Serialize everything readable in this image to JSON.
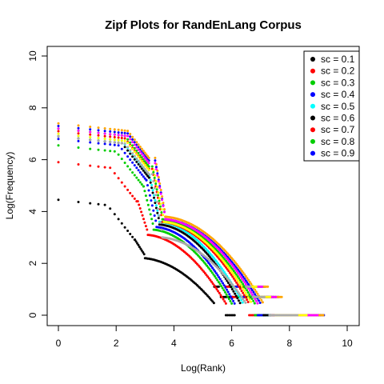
{
  "chart_data": {
    "type": "scatter",
    "title": "Zipf Plots for RandEnLang Corpus",
    "xlabel": "Log(Rank)",
    "ylabel": "Log(Frequency)",
    "xlim": [
      0,
      10
    ],
    "ylim": [
      0,
      10
    ],
    "xticks": [
      "0",
      "2",
      "4",
      "6",
      "8",
      "10"
    ],
    "yticks": [
      "0",
      "2",
      "4",
      "6",
      "8",
      "10"
    ],
    "legend_position": "top-right",
    "legend": [
      {
        "label": "sc = 0.1",
        "color": "#000000"
      },
      {
        "label": "sc = 0.2",
        "color": "#ff0000"
      },
      {
        "label": "sc = 0.3",
        "color": "#00cd00"
      },
      {
        "label": "sc = 0.4",
        "color": "#0000ff"
      },
      {
        "label": "sc = 0.5",
        "color": "#00ffff"
      },
      {
        "label": "sc = 0.6",
        "color": "#000000"
      },
      {
        "label": "sc = 0.7",
        "color": "#ff0000"
      },
      {
        "label": "sc = 0.8",
        "color": "#00cd00"
      },
      {
        "label": "sc = 0.9",
        "color": "#0000ff"
      }
    ],
    "series": [
      {
        "color": "#000000",
        "top_y": 4.45,
        "shoulder_x": 2.3,
        "mid_y": 2.2,
        "tail_x": 5.4,
        "end_x": 6.1,
        "end_y": 0
      },
      {
        "color": "#ff0000",
        "top_y": 5.9,
        "shoulder_x": 2.4,
        "mid_y": 3.1,
        "tail_x": 5.8,
        "end_x": 7.0,
        "end_y": 0
      },
      {
        "color": "#00cd00",
        "top_y": 6.55,
        "shoulder_x": 2.6,
        "mid_y": 3.3,
        "tail_x": 6.0,
        "end_x": 8.0,
        "end_y": 0
      },
      {
        "color": "#0000ff",
        "top_y": 6.8,
        "shoulder_x": 2.7,
        "mid_y": 3.4,
        "tail_x": 6.1,
        "end_x": 8.5,
        "end_y": 0
      },
      {
        "color": "#00ffff",
        "top_y": 7.0,
        "shoulder_x": 2.8,
        "mid_y": 3.6,
        "tail_x": 6.4,
        "end_x": 8.8,
        "end_y": 0
      },
      {
        "color": "#000000",
        "top_y": 6.9,
        "shoulder_x": 2.8,
        "mid_y": 3.5,
        "tail_x": 6.3,
        "end_x": 8.9,
        "end_y": 0
      },
      {
        "color": "#ff0000",
        "top_y": 7.1,
        "shoulder_x": 2.9,
        "mid_y": 3.6,
        "tail_x": 6.6,
        "end_x": 9.0,
        "end_y": 0
      },
      {
        "color": "#00cd00",
        "top_y": 7.2,
        "shoulder_x": 2.9,
        "mid_y": 3.7,
        "tail_x": 6.8,
        "end_x": 9.1,
        "end_y": 0
      },
      {
        "color": "#0000ff",
        "top_y": 7.3,
        "shoulder_x": 3.0,
        "mid_y": 3.7,
        "tail_x": 7.0,
        "end_x": 9.2,
        "end_y": 0
      },
      {
        "color": "#ffa500",
        "top_y": 7.4,
        "shoulder_x": 3.0,
        "mid_y": 3.8,
        "tail_x": 7.1,
        "end_x": 9.2,
        "end_y": 0
      },
      {
        "color": "#ff00ff",
        "top_y": 7.2,
        "shoulder_x": 3.0,
        "mid_y": 3.7,
        "tail_x": 6.9,
        "end_x": 9.0,
        "end_y": 0
      },
      {
        "color": "#ffff00",
        "top_y": 7.0,
        "shoulder_x": 2.95,
        "mid_y": 3.6,
        "tail_x": 6.7,
        "end_x": 8.6,
        "end_y": 0
      },
      {
        "color": "#aaaaaa",
        "top_y": 6.9,
        "shoulder_x": 2.9,
        "mid_y": 3.0,
        "tail_x": 6.5,
        "end_x": 8.3,
        "end_y": 0
      }
    ]
  }
}
